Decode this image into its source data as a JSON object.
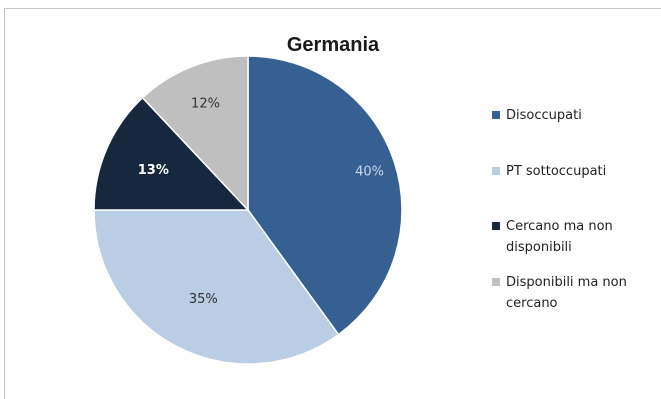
{
  "chart_data": {
    "type": "pie",
    "title": "Germania",
    "categories": [
      "Disoccupati",
      "PT sottoccupati",
      "Cercano ma non disponibili",
      "Disponibili ma non cercano"
    ],
    "values": [
      40,
      35,
      13,
      12
    ],
    "data_labels": [
      "40%",
      "35%",
      "13%",
      "12%"
    ],
    "colors": [
      "#376092",
      "#b9cde5",
      "#17283e",
      "#bfbfbf"
    ],
    "label_colors": [
      "#c8d6ea",
      "#333333",
      "#ffffff",
      "#333333"
    ],
    "label_bold": [
      false,
      false,
      true,
      false
    ],
    "start_angle_deg": 0,
    "direction": "clockwise",
    "legend_position": "right"
  }
}
